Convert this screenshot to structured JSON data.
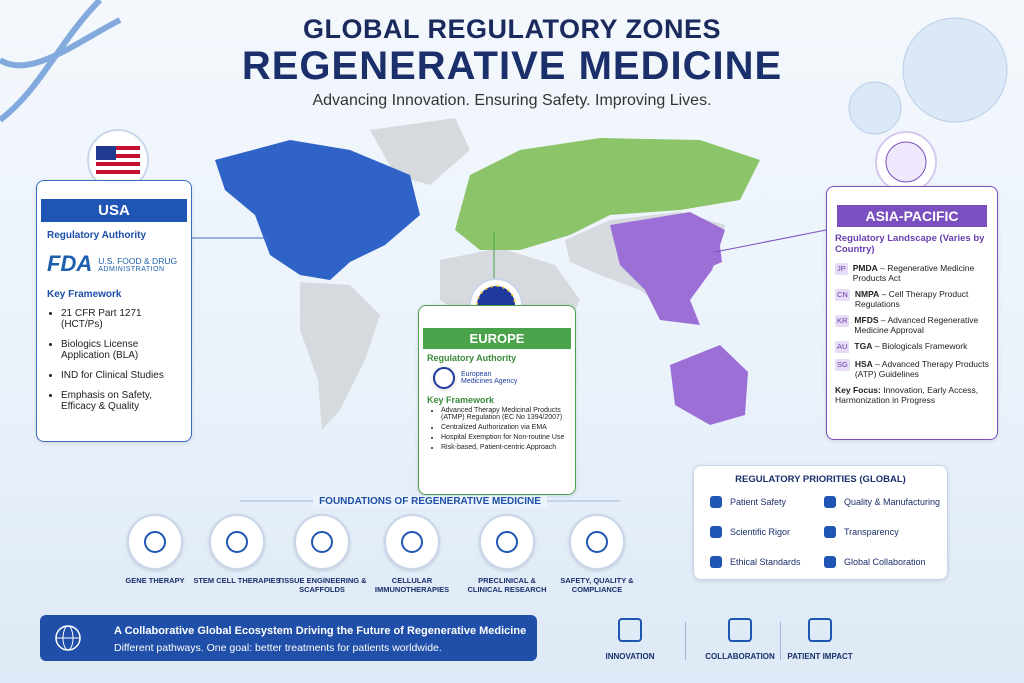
{
  "header": {
    "title_line1": "GLOBAL REGULATORY ZONES",
    "title_line2": "REGENERATIVE MEDICINE",
    "subtitle": "Advancing Innovation. Ensuring Safety. Improving Lives."
  },
  "usa": {
    "name": "USA",
    "authority_label": "Regulatory Authority",
    "logo": "FDA",
    "agency_line1": "U.S. FOOD & DRUG",
    "agency_line2": "ADMINISTRATION",
    "framework_label": "Key Framework",
    "items": [
      "21 CFR Part 1271 (HCT/Ps)",
      "Biologics License Application (BLA)",
      "IND for Clinical Studies",
      "Emphasis on Safety, Efficacy & Quality"
    ]
  },
  "europe": {
    "name": "EUROPE",
    "authority_label": "Regulatory Authority",
    "agency": "European Medicines Agency",
    "framework_label": "Key Framework",
    "items": [
      "Advanced Therapy Medicinal Products (ATMP) Regulation (EC No 1394/2007)",
      "Centralized Authorization via EMA",
      "Hospital Exemption for Non-routine Use",
      "Risk-based, Patient-centric Approach"
    ]
  },
  "asia": {
    "name": "ASIA-PACIFIC",
    "landscape": "Regulatory Landscape (Varies by Country)",
    "items": [
      {
        "code": "JP",
        "agency": "PMDA",
        "text": "– Regenerative Medicine Products Act"
      },
      {
        "code": "CN",
        "agency": "NMPA",
        "text": "– Cell Therapy Product Regulations"
      },
      {
        "code": "KR",
        "agency": "MFDS",
        "text": "– Advanced Regenerative Medicine Approval"
      },
      {
        "code": "AU",
        "agency": "TGA",
        "text": "– Biologicals Framework"
      },
      {
        "code": "SG",
        "agency": "HSA",
        "text": "– Advanced Therapy Products (ATP) Guidelines"
      }
    ],
    "focus_label": "Key Focus:",
    "focus_text": "Innovation, Early Access, Harmonization in Progress"
  },
  "foundations": {
    "title": "FOUNDATIONS OF REGENERATIVE MEDICINE",
    "items": [
      "GENE THERAPY",
      "STEM CELL THERAPIES",
      "TISSUE ENGINEERING & SCAFFOLDS",
      "CELLULAR IMMUNOTHERAPIES",
      "PRECLINICAL & CLINICAL RESEARCH",
      "SAFETY, QUALITY & COMPLIANCE"
    ]
  },
  "priorities": {
    "title": "REGULATORY PRIORITIES (GLOBAL)",
    "items": [
      "Patient Safety",
      "Quality & Manufacturing",
      "Scientific Rigor",
      "Transparency",
      "Ethical Standards",
      "Global Collaboration"
    ]
  },
  "banner": {
    "title": "A Collaborative Global Ecosystem Driving the Future of Regenerative Medicine",
    "subtitle": "Different pathways. One goal: better treatments for patients worldwide."
  },
  "pillars": [
    "INNOVATION",
    "COLLABORATION",
    "PATIENT IMPACT"
  ]
}
